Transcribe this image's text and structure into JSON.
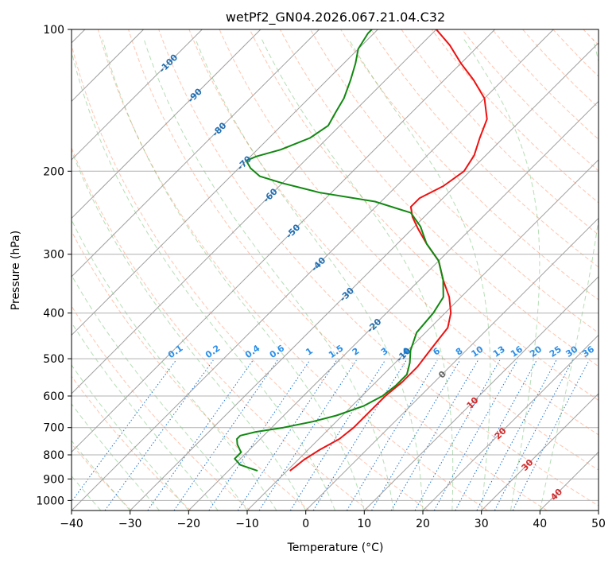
{
  "chart_data": {
    "type": "line",
    "title": "wetPf2_GN04.2026.067.21.04.C32",
    "xlabel": "Temperature (°C)",
    "ylabel": "Pressure (hPa)",
    "xlim": [
      -40,
      50
    ],
    "ylim": [
      1050,
      100
    ],
    "y_scale": "log",
    "grid": true,
    "x_ticks": [
      -40,
      -30,
      -20,
      -10,
      0,
      10,
      20,
      30,
      40,
      50
    ],
    "y_ticks": [
      100,
      200,
      300,
      400,
      500,
      600,
      700,
      800,
      900,
      1000
    ],
    "skew_factor": 35,
    "isotherms": [
      -100,
      -90,
      -80,
      -70,
      -60,
      -50,
      -40,
      -30,
      -20,
      -10,
      0,
      10,
      20,
      30,
      40
    ],
    "isotherm_labels": [
      {
        "label": "-100",
        "T": -100,
        "p": 118
      },
      {
        "label": "-90",
        "T": -90,
        "p": 138
      },
      {
        "label": "-80",
        "T": -80,
        "p": 163
      },
      {
        "label": "-70",
        "T": -70,
        "p": 192
      },
      {
        "label": "-60",
        "T": -60,
        "p": 225
      },
      {
        "label": "-50",
        "T": -50,
        "p": 268
      },
      {
        "label": "-40",
        "T": -40,
        "p": 315
      },
      {
        "label": "-30",
        "T": -30,
        "p": 365
      },
      {
        "label": "-20",
        "T": -20,
        "p": 425
      },
      {
        "label": "-10",
        "T": -10,
        "p": 490
      },
      {
        "label": "0",
        "T": 0,
        "p": 540
      },
      {
        "label": "10",
        "T": 10,
        "p": 620
      },
      {
        "label": "20",
        "T": 20,
        "p": 720
      },
      {
        "label": "30",
        "T": 30,
        "p": 840
      },
      {
        "label": "40",
        "T": 40,
        "p": 970
      }
    ],
    "mixing_ratio_labels": [
      "0.1",
      "0.2",
      "0.4",
      "0.6",
      "1",
      "1.5",
      "2",
      "3",
      "4",
      "6",
      "8",
      "10",
      "13",
      "16",
      "20",
      "25",
      "30",
      "36"
    ],
    "mixing_ratio_values": [
      0.1,
      0.2,
      0.4,
      0.6,
      1,
      1.5,
      2,
      3,
      4,
      6,
      8,
      10,
      13,
      16,
      20,
      25,
      30,
      36
    ],
    "mixing_ratio_label_pressure": 500,
    "series": [
      {
        "name": "Temperature",
        "color": "#ee1111",
        "points": [
          {
            "p": 865,
            "T": -9.5
          },
          {
            "p": 850,
            "T": -9.3
          },
          {
            "p": 820,
            "T": -9
          },
          {
            "p": 780,
            "T": -8
          },
          {
            "p": 740,
            "T": -6.5
          },
          {
            "p": 700,
            "T": -6
          },
          {
            "p": 650,
            "T": -6
          },
          {
            "p": 600,
            "T": -6
          },
          {
            "p": 560,
            "T": -5.5
          },
          {
            "p": 520,
            "T": -5.5
          },
          {
            "p": 490,
            "T": -6
          },
          {
            "p": 460,
            "T": -6.5
          },
          {
            "p": 430,
            "T": -7
          },
          {
            "p": 400,
            "T": -9
          },
          {
            "p": 370,
            "T": -12
          },
          {
            "p": 340,
            "T": -16
          },
          {
            "p": 310,
            "T": -20
          },
          {
            "p": 285,
            "T": -25
          },
          {
            "p": 265,
            "T": -29
          },
          {
            "p": 250,
            "T": -32
          },
          {
            "p": 238,
            "T": -34
          },
          {
            "p": 228,
            "T": -34
          },
          {
            "p": 215,
            "T": -32
          },
          {
            "p": 200,
            "T": -31
          },
          {
            "p": 185,
            "T": -32
          },
          {
            "p": 170,
            "T": -34
          },
          {
            "p": 155,
            "T": -36
          },
          {
            "p": 140,
            "T": -40
          },
          {
            "p": 128,
            "T": -45
          },
          {
            "p": 118,
            "T": -50
          },
          {
            "p": 108,
            "T": -55
          },
          {
            "p": 100,
            "T": -60
          }
        ]
      },
      {
        "name": "Dewpoint",
        "color": "#118811",
        "points": [
          {
            "p": 865,
            "T": -15
          },
          {
            "p": 840,
            "T": -19
          },
          {
            "p": 815,
            "T": -21
          },
          {
            "p": 790,
            "T": -21
          },
          {
            "p": 760,
            "T": -23
          },
          {
            "p": 740,
            "T": -24
          },
          {
            "p": 728,
            "T": -24
          },
          {
            "p": 715,
            "T": -22
          },
          {
            "p": 700,
            "T": -18
          },
          {
            "p": 680,
            "T": -14
          },
          {
            "p": 660,
            "T": -11
          },
          {
            "p": 630,
            "T": -8
          },
          {
            "p": 600,
            "T": -6.5
          },
          {
            "p": 570,
            "T": -6
          },
          {
            "p": 540,
            "T": -6
          },
          {
            "p": 510,
            "T": -7.5
          },
          {
            "p": 480,
            "T": -9.5
          },
          {
            "p": 440,
            "T": -11.5
          },
          {
            "p": 400,
            "T": -12
          },
          {
            "p": 370,
            "T": -13
          },
          {
            "p": 340,
            "T": -16
          },
          {
            "p": 310,
            "T": -20
          },
          {
            "p": 285,
            "T": -25
          },
          {
            "p": 262,
            "T": -29
          },
          {
            "p": 245,
            "T": -33
          },
          {
            "p": 232,
            "T": -41
          },
          {
            "p": 222,
            "T": -52
          },
          {
            "p": 212,
            "T": -60
          },
          {
            "p": 205,
            "T": -65
          },
          {
            "p": 197,
            "T": -68
          },
          {
            "p": 190,
            "T": -70
          },
          {
            "p": 186,
            "T": -69
          },
          {
            "p": 180,
            "T": -66
          },
          {
            "p": 170,
            "T": -63
          },
          {
            "p": 160,
            "T": -62
          },
          {
            "p": 150,
            "T": -63
          },
          {
            "p": 140,
            "T": -64
          },
          {
            "p": 128,
            "T": -66
          },
          {
            "p": 118,
            "T": -68
          },
          {
            "p": 110,
            "T": -70
          },
          {
            "p": 102,
            "T": -71
          },
          {
            "p": 100,
            "T": -71
          }
        ]
      }
    ]
  }
}
